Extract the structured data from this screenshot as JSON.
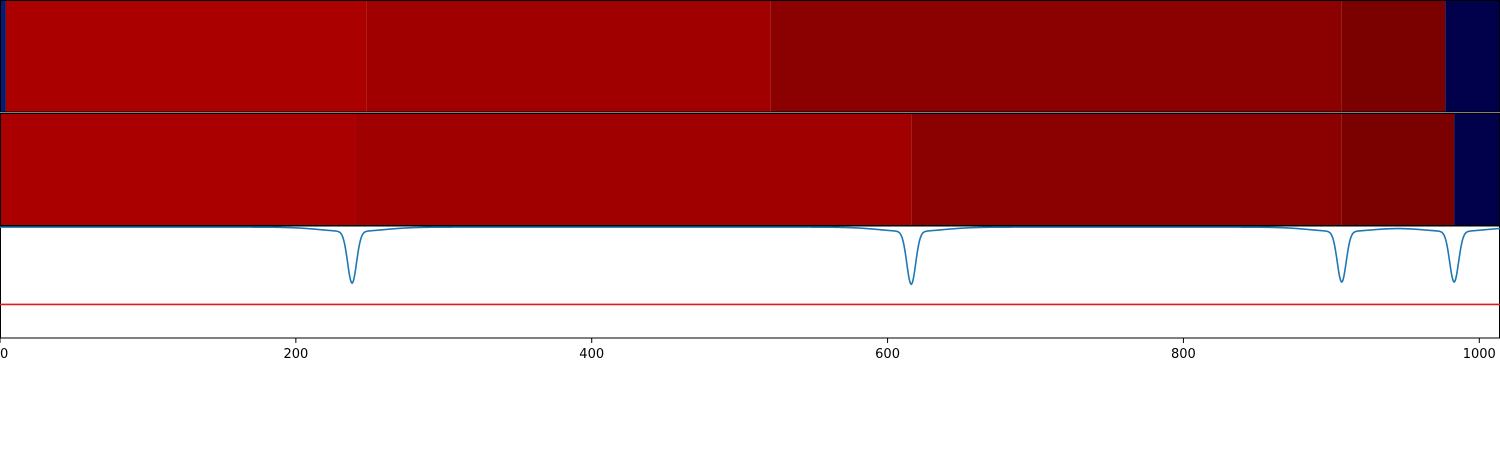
{
  "chart_data": [
    {
      "type": "heatmap",
      "name": "segmentation-bar-1",
      "xlim": [
        0,
        1014
      ],
      "segments": [
        {
          "start": 0,
          "end": 4,
          "color": "#0a1a6e"
        },
        {
          "start": 4,
          "end": 248,
          "color": "#ab0000"
        },
        {
          "start": 248,
          "end": 521,
          "color": "#a10000"
        },
        {
          "start": 521,
          "end": 907,
          "color": "#8b0000"
        },
        {
          "start": 907,
          "end": 977,
          "color": "#7b0000"
        },
        {
          "start": 977,
          "end": 1014,
          "color": "#00004b"
        }
      ]
    },
    {
      "type": "heatmap",
      "name": "segmentation-bar-2",
      "xlim": [
        0,
        1014
      ],
      "segments": [
        {
          "start": 0,
          "end": 240,
          "color": "#ab0000"
        },
        {
          "start": 240,
          "end": 616,
          "color": "#a10000"
        },
        {
          "start": 616,
          "end": 907,
          "color": "#8b0000"
        },
        {
          "start": 907,
          "end": 983,
          "color": "#7b0000"
        },
        {
          "start": 983,
          "end": 1014,
          "color": "#00004b"
        }
      ]
    },
    {
      "type": "line",
      "name": "boundary-signal",
      "xlim": [
        0,
        1014
      ],
      "ylim": [
        0,
        1
      ],
      "xticks": [
        0,
        200,
        400,
        600,
        800,
        1000
      ],
      "threshold": 0.3,
      "threshold_color": "#e31a1c",
      "series_color": "#1f77b4",
      "baseline": 0.99,
      "dips": [
        {
          "center": 238,
          "depth": 0.46,
          "width": 3
        },
        {
          "center": 616,
          "depth": 0.47,
          "width": 3
        },
        {
          "center": 907,
          "depth": 0.45,
          "width": 3
        },
        {
          "center": 983,
          "depth": 0.45,
          "width": 3
        }
      ]
    }
  ]
}
